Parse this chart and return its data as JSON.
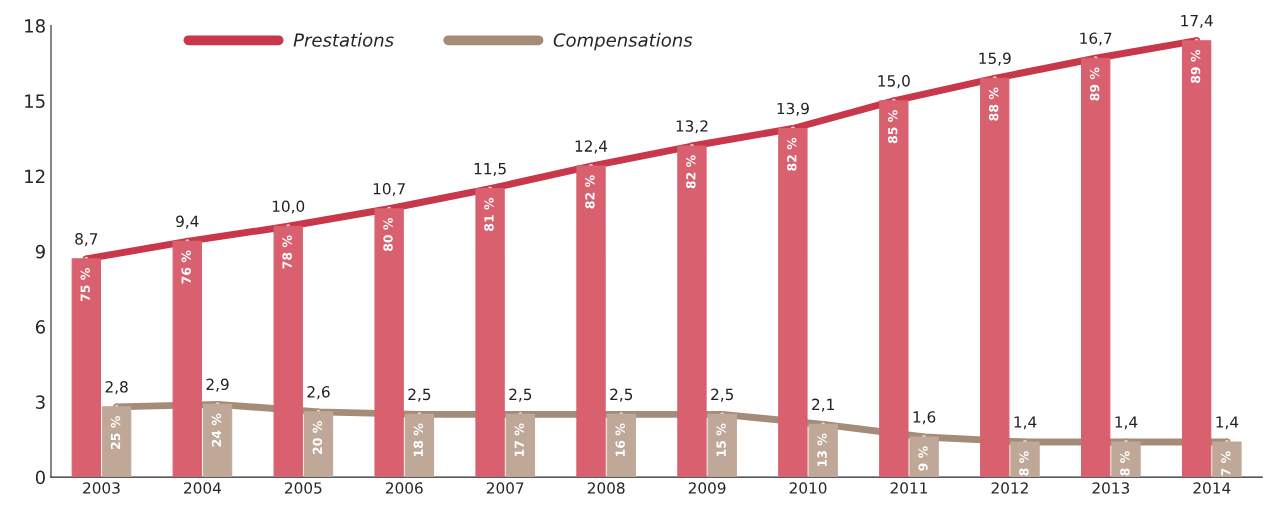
{
  "chart_data": {
    "type": "bar",
    "categories": [
      "2003",
      "2004",
      "2005",
      "2006",
      "2007",
      "2008",
      "2009",
      "2010",
      "2011",
      "2012",
      "2013",
      "2014"
    ],
    "series": [
      {
        "color": "#d9606e",
        "values": [
          8.7,
          9.4,
          10.0,
          10.7,
          11.5,
          12.4,
          13.2,
          13.9,
          15.0,
          15.9,
          16.7,
          17.4
        ]
      },
      {
        "color": "#bfa898",
        "values": [
          2.8,
          2.9,
          2.6,
          2.5,
          2.5,
          2.5,
          2.5,
          2.1,
          1.6,
          1.4,
          1.4,
          1.4
        ]
      },
      {
        "type": "line",
        "name": "Prestations",
        "color": "#c8374a",
        "values": [
          8.7,
          9.4,
          10.0,
          10.7,
          11.5,
          12.4,
          13.2,
          13.9,
          15.0,
          15.9,
          16.7,
          17.4
        ],
        "value_labels": [
          "8,7",
          "9,4",
          "10,0",
          "10,7",
          "11,5",
          "12,4",
          "13,2",
          "13,9",
          "15,0",
          "15,9",
          "16,7",
          "17,4"
        ]
      },
      {
        "type": "line",
        "name": "Compensations",
        "color": "#a58c78",
        "values": [
          2.8,
          2.9,
          2.6,
          2.5,
          2.5,
          2.5,
          2.5,
          2.1,
          1.6,
          1.4,
          1.4,
          1.4
        ],
        "value_labels": [
          "2,8",
          "2,9",
          "2,6",
          "2,5",
          "2,5",
          "2,5",
          "2,5",
          "2,1",
          "1,6",
          "1,4",
          "1,4",
          "1,4"
        ]
      }
    ],
    "annotations": [
      {
        "text": "75 %",
        "x": "2003",
        "y": 8.7
      },
      {
        "text": "76 %",
        "x": "2004",
        "y": 9.4
      },
      {
        "text": "78 %",
        "x": "2005",
        "y": 10.0
      },
      {
        "text": "80 %",
        "x": "2006",
        "y": 10.7
      },
      {
        "text": "81 %",
        "x": "2007",
        "y": 11.5
      },
      {
        "text": "82 %",
        "x": "2008",
        "y": 12.4
      },
      {
        "text": "82 %",
        "x": "2009",
        "y": 13.2
      },
      {
        "text": "82 %",
        "x": "2010",
        "y": 13.9
      },
      {
        "text": "85 %",
        "x": "2011",
        "y": 15.0
      },
      {
        "text": "88 %",
        "x": "2012",
        "y": 15.9
      },
      {
        "text": "89 %",
        "x": "2013",
        "y": 16.7
      },
      {
        "text": "89 %",
        "x": "2014",
        "y": 17.4
      },
      {
        "text": "25 %",
        "x": "2003",
        "y": 2.8
      },
      {
        "text": "24 %",
        "x": "2004",
        "y": 2.9
      },
      {
        "text": "20 %",
        "x": "2005",
        "y": 2.6
      },
      {
        "text": "18 %",
        "x": "2006",
        "y": 2.5
      },
      {
        "text": "17 %",
        "x": "2007",
        "y": 2.5
      },
      {
        "text": "16 %",
        "x": "2008",
        "y": 2.5
      },
      {
        "text": "15 %",
        "x": "2009",
        "y": 2.5
      },
      {
        "text": "13 %",
        "x": "2010",
        "y": 2.1
      },
      {
        "text": "9 %",
        "x": "2011",
        "y": 1.6
      },
      {
        "text": "8 %",
        "x": "2012",
        "y": 1.4
      },
      {
        "text": "8 %",
        "x": "2013",
        "y": 1.4
      },
      {
        "text": "7 %",
        "x": "2014",
        "y": 1.4
      }
    ],
    "ylim": [
      0,
      18
    ],
    "yticks": [
      0,
      3,
      6,
      9,
      12,
      15,
      18
    ],
    "legend": "top left",
    "marker": "circle",
    "line_style": "solid"
  }
}
